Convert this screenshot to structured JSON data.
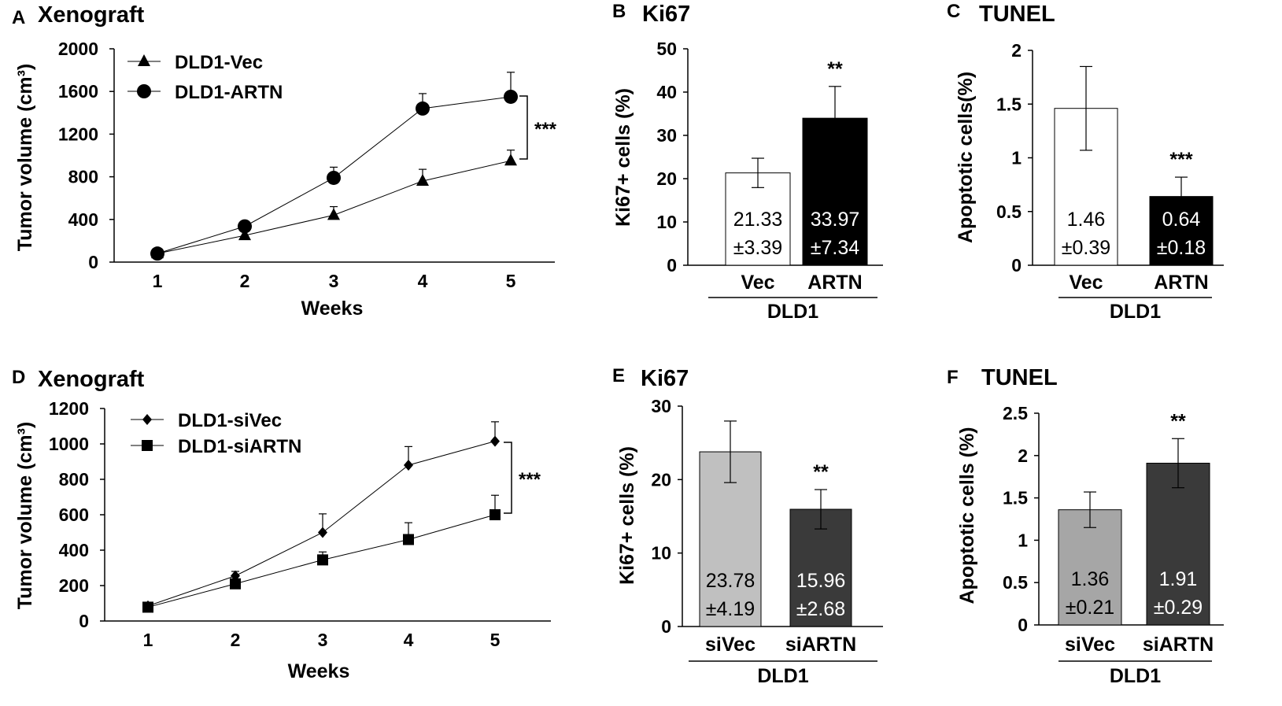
{
  "chart_data": [
    {
      "panel": "A",
      "type": "line",
      "title": "Xenograft",
      "xlabel": "Weeks",
      "ylabel": "Tumor volume (cm³)",
      "x": [
        1,
        2,
        3,
        4,
        5
      ],
      "yticks": [
        0,
        400,
        800,
        1200,
        1600,
        2000
      ],
      "ylim": [
        0,
        2000
      ],
      "series": [
        {
          "name": "DLD1-Vec",
          "marker": "triangle",
          "values": [
            80,
            250,
            440,
            760,
            950
          ],
          "errors": [
            0,
            40,
            80,
            110,
            100
          ]
        },
        {
          "name": "DLD1-ARTN",
          "marker": "circle",
          "values": [
            80,
            335,
            790,
            1440,
            1550
          ],
          "errors": [
            0,
            30,
            100,
            140,
            230
          ]
        }
      ],
      "significance": "***"
    },
    {
      "panel": "B",
      "type": "bar",
      "title": "Ki67",
      "ylabel": "Ki67+ cells (%)",
      "group_label": "DLD1",
      "categories": [
        "Vec",
        "ARTN"
      ],
      "values": [
        21.33,
        33.97
      ],
      "errors": [
        3.39,
        7.34
      ],
      "value_labels": [
        "21.33",
        "33.97"
      ],
      "error_labels": [
        "±3.39",
        "±7.34"
      ],
      "colors": [
        "#ffffff",
        "#000000"
      ],
      "text_colors": [
        "#000000",
        "#ffffff"
      ],
      "yticks": [
        "0",
        "10",
        "20",
        "30",
        "40",
        "50"
      ],
      "ylim": [
        0,
        50
      ],
      "significance": [
        "",
        "**"
      ]
    },
    {
      "panel": "C",
      "type": "bar",
      "title": "TUNEL",
      "ylabel": "Apoptotic cells(%)",
      "group_label": "DLD1",
      "categories": [
        "Vec",
        "ARTN"
      ],
      "values": [
        1.46,
        0.64
      ],
      "errors": [
        0.39,
        0.18
      ],
      "value_labels": [
        "1.46",
        "0.64"
      ],
      "error_labels": [
        "±0.39",
        "±0.18"
      ],
      "colors": [
        "#ffffff",
        "#000000"
      ],
      "text_colors": [
        "#000000",
        "#ffffff"
      ],
      "yticks": [
        "0",
        "0.5",
        "1",
        "1.5",
        "2"
      ],
      "ylim": [
        0,
        2
      ],
      "significance": [
        "",
        "***"
      ]
    },
    {
      "panel": "D",
      "type": "line",
      "title": "Xenograft",
      "xlabel": "Weeks",
      "ylabel": "Tumor volume (cm³)",
      "x": [
        1,
        2,
        3,
        4,
        5
      ],
      "yticks": [
        0,
        200,
        400,
        600,
        800,
        1000,
        1200
      ],
      "ylim": [
        0,
        1200
      ],
      "series": [
        {
          "name": "DLD1-siVec",
          "marker": "diamond",
          "values": [
            85,
            255,
            500,
            880,
            1015
          ],
          "errors": [
            0,
            25,
            105,
            105,
            110
          ]
        },
        {
          "name": "DLD1-siARTN",
          "marker": "square",
          "values": [
            78,
            210,
            345,
            460,
            600
          ],
          "errors": [
            0,
            20,
            45,
            95,
            110
          ]
        }
      ],
      "significance": "***"
    },
    {
      "panel": "E",
      "type": "bar",
      "title": "Ki67",
      "ylabel": "Ki67+ cells (%)",
      "group_label": "DLD1",
      "categories": [
        "siVec",
        "siARTN"
      ],
      "values": [
        23.78,
        15.96
      ],
      "errors": [
        4.19,
        2.68
      ],
      "value_labels": [
        "23.78",
        "15.96"
      ],
      "error_labels": [
        "±4.19",
        "±2.68"
      ],
      "colors": [
        "#c0c0c0",
        "#3a3a3a"
      ],
      "text_colors": [
        "#000000",
        "#ffffff"
      ],
      "yticks": [
        "0",
        "10",
        "20",
        "30"
      ],
      "ylim": [
        0,
        30
      ],
      "significance": [
        "",
        "**"
      ]
    },
    {
      "panel": "F",
      "type": "bar",
      "title": "TUNEL",
      "ylabel": "Apoptotic cells (%)",
      "group_label": "DLD1",
      "categories": [
        "siVec",
        "siARTN"
      ],
      "values": [
        1.36,
        1.91
      ],
      "errors": [
        0.21,
        0.29
      ],
      "value_labels": [
        "1.36",
        "1.91"
      ],
      "error_labels": [
        "±0.21",
        "±0.29"
      ],
      "colors": [
        "#a6a6a6",
        "#3a3a3a"
      ],
      "text_colors": [
        "#000000",
        "#ffffff"
      ],
      "yticks": [
        "0",
        "0.5",
        "1",
        "1.5",
        "2",
        "2.5"
      ],
      "ylim": [
        0,
        2.5
      ],
      "significance": [
        "",
        "**"
      ]
    }
  ]
}
